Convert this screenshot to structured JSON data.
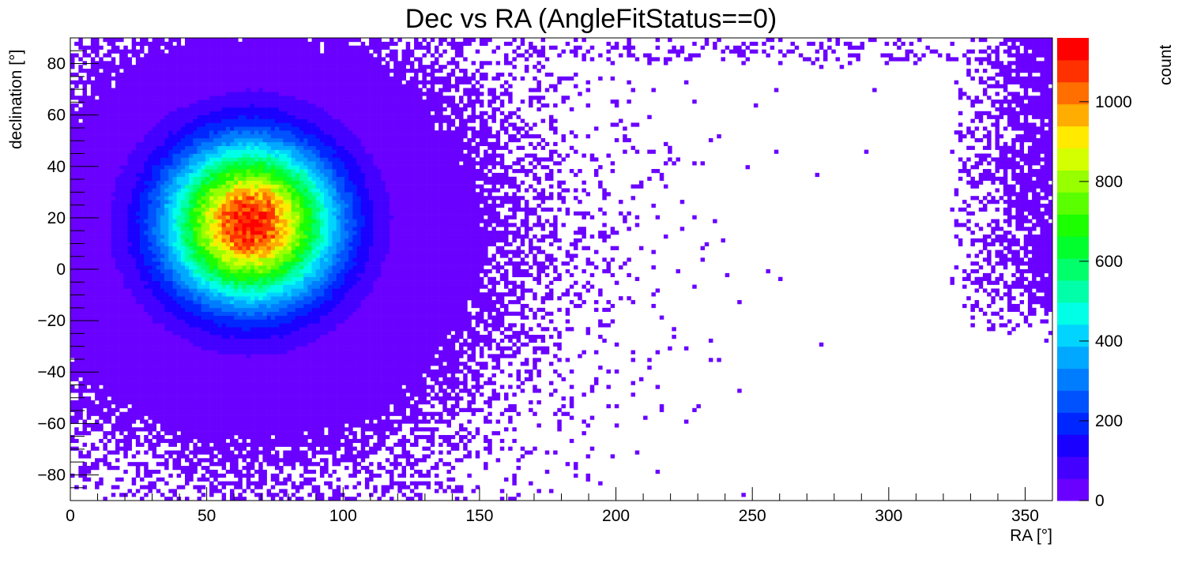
{
  "chart_data": {
    "type": "heatmap",
    "title": "Dec vs RA (AngleFitStatus==0)",
    "xlabel": "RA [°]",
    "ylabel": "declination [°]",
    "zlabel": "count",
    "xlim": [
      0,
      360
    ],
    "ylim": [
      -90,
      90
    ],
    "zlim": [
      0,
      1160
    ],
    "x_ticks": [
      0,
      50,
      100,
      150,
      200,
      250,
      300,
      350
    ],
    "y_ticks": [
      -80,
      -60,
      -40,
      -20,
      0,
      20,
      40,
      60,
      80
    ],
    "z_ticks": [
      0,
      200,
      400,
      600,
      800,
      1000
    ],
    "x_tick_labels": [
      "0",
      "50",
      "100",
      "150",
      "200",
      "250",
      "300",
      "350"
    ],
    "y_tick_labels": [
      "−80",
      "−60",
      "−40",
      "−20",
      "0",
      "20",
      "40",
      "60",
      "80"
    ],
    "z_tick_labels": [
      "0",
      "200",
      "400",
      "600",
      "800",
      "1000"
    ],
    "peak": {
      "ra": 66,
      "dec": 18,
      "count": 1120
    },
    "palette": [
      "#6a00ff",
      "#4400ff",
      "#1a00ff",
      "#0026ff",
      "#0052ff",
      "#007dff",
      "#00a8ff",
      "#00d4ff",
      "#00ffe6",
      "#00ffa8",
      "#00ff6a",
      "#00ff2c",
      "#1cff00",
      "#5aff00",
      "#97ff00",
      "#d4ff00",
      "#ffea00",
      "#ffad00",
      "#ff6f00",
      "#ff3100",
      "#ff0000"
    ]
  }
}
